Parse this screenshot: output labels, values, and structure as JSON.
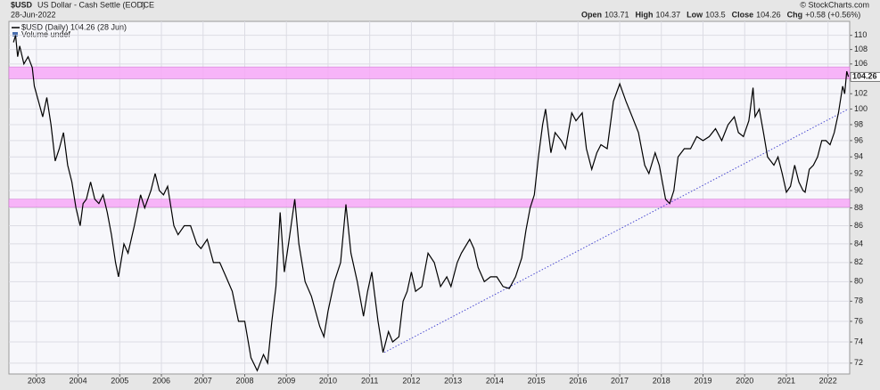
{
  "chart_data": {
    "type": "line",
    "symbol": "$USD",
    "name": "US Dollar - Cash Settle (EOD)",
    "exchange": "ICE",
    "date": "28-Jun-2022",
    "copyright": "© StockCharts.com",
    "quote": [
      {
        "label": "Open",
        "value": 103.71
      },
      {
        "label": "High",
        "value": 104.37
      },
      {
        "label": "Low",
        "value": 103.5
      },
      {
        "label": "Close",
        "value": 104.26
      },
      {
        "label": "Chg",
        "value": "+0.58 (+0.56%)"
      }
    ],
    "volume_legend": "Volume undef",
    "log_scale": true,
    "grid": true,
    "xlim": [
      2002.34,
      2022.52
    ],
    "ylim": [
      71,
      112
    ],
    "xticks": [
      2003,
      2004,
      2005,
      2006,
      2007,
      2008,
      2009,
      2010,
      2011,
      2012,
      2013,
      2014,
      2015,
      2016,
      2017,
      2018,
      2019,
      2020,
      2021,
      2022
    ],
    "yticks": [
      72,
      74,
      76,
      78,
      80,
      82,
      84,
      86,
      88,
      90,
      92,
      94,
      96,
      98,
      100,
      102,
      104,
      106,
      108,
      110
    ],
    "bands": [
      {
        "from": 104,
        "to": 105.6,
        "color": "#f7a8f7"
      },
      {
        "from": 88.1,
        "to": 89,
        "color": "#f7a8f7"
      }
    ],
    "trendline": {
      "x": [
        2011.35,
        2022.49
      ],
      "y": [
        73,
        100
      ],
      "color": "#4a4ad0"
    },
    "x": [
      2002.45,
      2002.5,
      2002.55,
      2002.6,
      2002.7,
      2002.8,
      2002.9,
      2002.95,
      2003.05,
      2003.15,
      2003.25,
      2003.35,
      2003.45,
      2003.55,
      2003.65,
      2003.75,
      2003.85,
      2003.95,
      2004.05,
      2004.12,
      2004.2,
      2004.3,
      2004.4,
      2004.5,
      2004.6,
      2004.7,
      2004.8,
      2004.9,
      2004.97,
      2005.1,
      2005.2,
      2005.35,
      2005.5,
      2005.6,
      2005.75,
      2005.85,
      2005.95,
      2006.05,
      2006.15,
      2006.3,
      2006.4,
      2006.55,
      2006.7,
      2006.85,
      2006.95,
      2007.1,
      2007.25,
      2007.4,
      2007.55,
      2007.7,
      2007.85,
      2008.0,
      2008.15,
      2008.3,
      2008.45,
      2008.55,
      2008.65,
      2008.75,
      2008.85,
      2008.95,
      2009.05,
      2009.2,
      2009.3,
      2009.45,
      2009.6,
      2009.8,
      2009.9,
      2010.0,
      2010.15,
      2010.3,
      2010.43,
      2010.55,
      2010.7,
      2010.85,
      2010.95,
      2011.05,
      2011.2,
      2011.32,
      2011.45,
      2011.55,
      2011.7,
      2011.8,
      2011.9,
      2012.0,
      2012.1,
      2012.25,
      2012.4,
      2012.55,
      2012.7,
      2012.85,
      2012.95,
      2013.1,
      2013.2,
      2013.4,
      2013.5,
      2013.6,
      2013.75,
      2013.9,
      2014.05,
      2014.2,
      2014.35,
      2014.5,
      2014.65,
      2014.75,
      2014.85,
      2014.95,
      2015.05,
      2015.15,
      2015.22,
      2015.35,
      2015.45,
      2015.6,
      2015.7,
      2015.85,
      2015.95,
      2016.1,
      2016.2,
      2016.33,
      2016.45,
      2016.55,
      2016.7,
      2016.85,
      2017.0,
      2017.15,
      2017.3,
      2017.45,
      2017.6,
      2017.7,
      2017.85,
      2017.95,
      2018.1,
      2018.2,
      2018.3,
      2018.4,
      2018.55,
      2018.7,
      2018.85,
      2019.0,
      2019.15,
      2019.3,
      2019.45,
      2019.6,
      2019.75,
      2019.85,
      2019.97,
      2020.1,
      2020.2,
      2020.25,
      2020.35,
      2020.45,
      2020.55,
      2020.7,
      2020.8,
      2020.9,
      2021.0,
      2021.1,
      2021.2,
      2021.3,
      2021.4,
      2021.45,
      2021.55,
      2021.65,
      2021.75,
      2021.85,
      2021.95,
      2022.05,
      2022.15,
      2022.25,
      2022.35,
      2022.4,
      2022.45,
      2022.49
    ],
    "series": [
      {
        "name": "$USD (Daily) 104.26 (28 Jun)",
        "color": "#000000",
        "values": [
          109,
          110,
          107,
          108.5,
          106,
          107,
          105.5,
          103,
          101,
          99,
          101.5,
          98,
          93.5,
          95,
          97,
          93,
          91,
          88,
          86,
          88.5,
          89,
          91,
          89,
          88.5,
          89.5,
          87.5,
          85,
          82,
          80.5,
          84,
          83,
          86,
          89.5,
          88,
          90,
          92,
          90,
          89.5,
          90.5,
          86,
          85,
          86,
          86,
          84,
          83.5,
          84.5,
          82,
          82,
          80.5,
          79,
          76,
          76,
          72.5,
          71.3,
          72.8,
          72,
          76,
          79.5,
          87.5,
          81,
          84,
          89,
          84,
          80,
          78.5,
          75.5,
          74.5,
          77,
          80,
          82,
          88.4,
          83,
          80,
          76.5,
          79,
          81,
          76,
          73,
          75,
          74,
          74.5,
          78,
          79,
          81,
          79,
          79.5,
          83,
          82,
          79.5,
          80.5,
          79.5,
          82,
          83,
          84.5,
          83.5,
          81.5,
          80,
          80.5,
          80.5,
          79.5,
          79.3,
          80.5,
          82.5,
          85.5,
          88,
          89.5,
          94,
          98,
          100,
          94.5,
          97,
          96,
          95,
          99.5,
          98.5,
          99.5,
          95,
          92.5,
          94.5,
          95.5,
          95,
          101,
          103.3,
          101,
          99,
          97,
          93,
          92,
          94.5,
          93,
          89,
          88.5,
          90,
          94,
          95,
          95,
          96.5,
          96,
          96.5,
          97.5,
          96,
          98,
          99,
          97,
          96.5,
          98.5,
          102.8,
          99,
          100,
          97,
          94,
          93,
          94,
          92,
          89.8,
          90.5,
          93,
          91,
          90,
          89.8,
          92.5,
          93,
          94,
          96,
          96,
          95.5,
          97,
          99.5,
          103,
          102,
          105,
          104.26
        ]
      }
    ]
  }
}
